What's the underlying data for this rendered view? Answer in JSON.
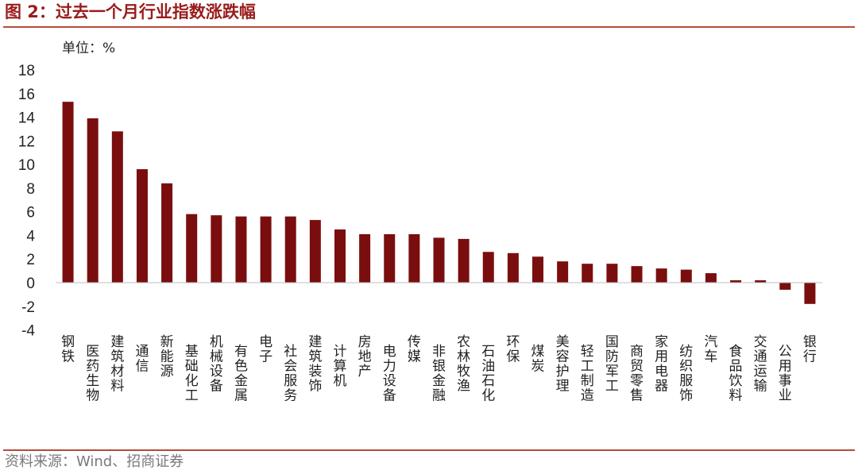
{
  "header": {
    "title": "图 2：过去一个月行业指数涨跌幅"
  },
  "footer": {
    "source": "资料来源：Wind、招商证券"
  },
  "colors": {
    "bar": "#7a0e0e",
    "accent": "#9a1c1c",
    "rule": "#b84a3a",
    "axis": "#bfbfbf"
  },
  "chart_data": {
    "type": "bar",
    "unit_label": "单位：%",
    "ylim": [
      -4,
      18
    ],
    "yticks": [
      18,
      16,
      14,
      12,
      10,
      8,
      6,
      4,
      2,
      0,
      -2,
      -4
    ],
    "grid": false,
    "categories": [
      "钢铁",
      "医药生物",
      "建筑材料",
      "通信",
      "新能源",
      "基础化工",
      "机械设备",
      "有色金属",
      "电子",
      "社会服务",
      "建筑装饰",
      "计算机",
      "房地产",
      "电力设备",
      "传媒",
      "非银金融",
      "农林牧渔",
      "石油石化",
      "环保",
      "煤炭",
      "美容护理",
      "轻工制造",
      "国防军工",
      "商贸零售",
      "家用电器",
      "纺织服饰",
      "汽车",
      "食品饮料",
      "交通运输",
      "公用事业",
      "银行"
    ],
    "values": [
      15.3,
      13.9,
      12.8,
      9.6,
      8.4,
      5.8,
      5.7,
      5.6,
      5.6,
      5.6,
      5.3,
      4.5,
      4.1,
      4.1,
      4.1,
      3.8,
      3.7,
      2.6,
      2.5,
      2.2,
      1.8,
      1.6,
      1.6,
      1.4,
      1.2,
      1.1,
      0.8,
      0.2,
      0.2,
      -0.6,
      -1.8
    ]
  }
}
